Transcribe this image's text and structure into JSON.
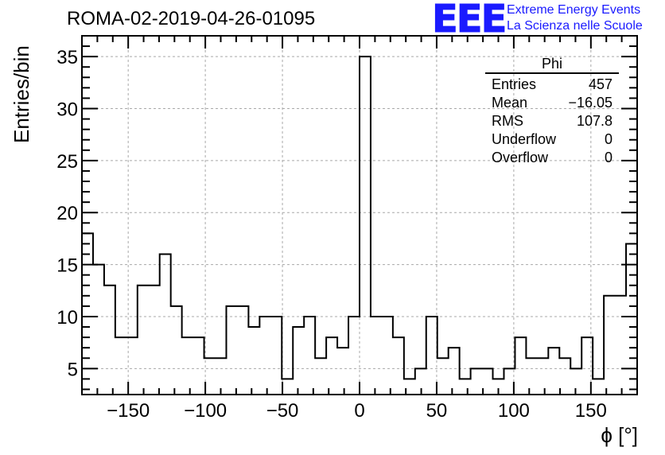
{
  "header": {
    "title": "ROMA-02-2019-04-26-01095"
  },
  "logo": {
    "mark": "EEE",
    "line1": "Extreme Energy Events",
    "line2": "La Scienza nelle Scuole",
    "color": "#1a1aff"
  },
  "stats": {
    "name": "Phi",
    "rows": [
      {
        "label": "Entries",
        "value": "457"
      },
      {
        "label": "Mean",
        "value": "−16.05"
      },
      {
        "label": "RMS",
        "value": "107.8"
      },
      {
        "label": "Underflow",
        "value": "0"
      },
      {
        "label": "Overflow",
        "value": "0"
      }
    ]
  },
  "chart_data": {
    "type": "histogram",
    "xlabel": "ϕ [°]",
    "ylabel": "Entries/bin",
    "xlim": [
      -180,
      180
    ],
    "ylim": [
      2.5,
      37
    ],
    "bin_width": 7.2,
    "bin_start": -180,
    "values": [
      18,
      15,
      13,
      8,
      8,
      13,
      13,
      16,
      11,
      8,
      8,
      6,
      6,
      11,
      11,
      9,
      10,
      10,
      4,
      9,
      10,
      6,
      8,
      7,
      10,
      35,
      10,
      10,
      8,
      4,
      5,
      10,
      6,
      7,
      4,
      5,
      5,
      4,
      5,
      8,
      6,
      6,
      7,
      6,
      5,
      8,
      4,
      12,
      12,
      17
    ],
    "xticks": [
      -150,
      -100,
      -50,
      0,
      50,
      100,
      150
    ],
    "yticks": [
      5,
      10,
      15,
      20,
      25,
      30,
      35
    ],
    "grid": true,
    "line_color": "#000000"
  }
}
